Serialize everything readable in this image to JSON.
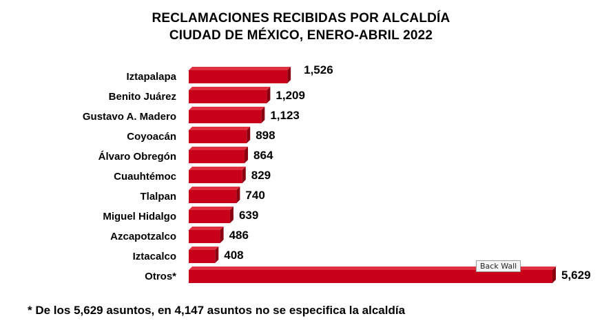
{
  "chart_data": {
    "type": "bar",
    "orientation": "horizontal",
    "title_line1": "RECLAMACIONES RECIBIDAS POR ALCALDÍA",
    "title_line2": "CIUDAD DE MÉXICO, ENERO-ABRIL 2022",
    "categories": [
      "Iztapalapa",
      "Benito Juárez",
      "Gustavo A. Madero",
      "Coyoacán",
      "Álvaro Obregón",
      "Cuauhtémoc",
      "Tlalpan",
      "Miguel Hidalgo",
      "Azcapotzalco",
      "Iztacalco",
      "Otros*"
    ],
    "values": [
      1526,
      1209,
      1123,
      898,
      864,
      829,
      740,
      639,
      486,
      408,
      5629
    ],
    "value_labels": [
      "1,526",
      "1,209",
      "1,123",
      "898",
      "864",
      "829",
      "740",
      "639",
      "486",
      "408",
      "5,629"
    ],
    "bar_color": "#c8001a",
    "bar_top_color": "#e0303f",
    "bar_side_color": "#8a0010",
    "grid": false,
    "legend": "none"
  },
  "footnote": "* De los 5,629 asuntos, en 4,147 asuntos no se especifica la alcaldía",
  "tooltip": "Back Wall"
}
